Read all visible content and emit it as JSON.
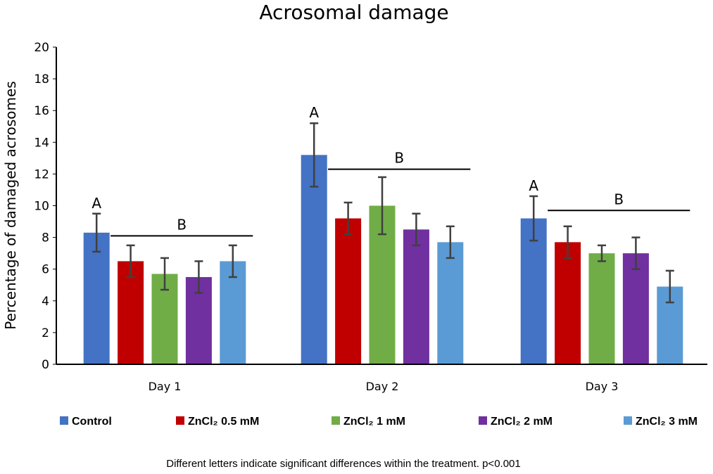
{
  "chart_data": {
    "type": "bar",
    "title": "Acrosomal damage",
    "xlabel": "",
    "ylabel": "Percentage of damaged acrosomes",
    "ylim": [
      0,
      20
    ],
    "yticks": [
      0,
      2,
      4,
      6,
      8,
      10,
      12,
      14,
      16,
      18,
      20
    ],
    "categories": [
      "Day 1",
      "Day 2",
      "Day 3"
    ],
    "series": [
      {
        "name": "Control",
        "color": "#4472C4",
        "values": [
          8.3,
          13.2,
          9.2
        ],
        "errors": [
          1.2,
          2.0,
          1.4
        ]
      },
      {
        "name": "ZnCl₂ 0.5 mM",
        "color": "#C00000",
        "values": [
          6.5,
          9.2,
          7.7
        ],
        "errors": [
          1.0,
          1.0,
          1.0
        ]
      },
      {
        "name": "ZnCl₂ 1 mM",
        "color": "#70AD47",
        "values": [
          5.7,
          10.0,
          7.0
        ],
        "errors": [
          1.0,
          1.8,
          0.5
        ]
      },
      {
        "name": "ZnCl₂ 2 mM",
        "color": "#7030A0",
        "values": [
          5.5,
          8.5,
          7.0
        ],
        "errors": [
          1.0,
          1.0,
          1.0
        ]
      },
      {
        "name": "ZnCl₂ 3 mM",
        "color": "#5B9BD5",
        "values": [
          6.5,
          7.7,
          4.9
        ],
        "errors": [
          1.0,
          1.0,
          1.0
        ]
      }
    ],
    "annotations": [
      {
        "category": "Day 1",
        "control_letter": "A",
        "group_letter": "B",
        "group_line_y": 8.1
      },
      {
        "category": "Day 2",
        "control_letter": "A",
        "group_letter": "B",
        "group_line_y": 12.3
      },
      {
        "category": "Day 3",
        "control_letter": "A",
        "group_letter": "B",
        "group_line_y": 9.7
      }
    ],
    "legend_position": "bottom",
    "footnote": "Different letters indicate significant differences within the treatment. p<0.001"
  }
}
